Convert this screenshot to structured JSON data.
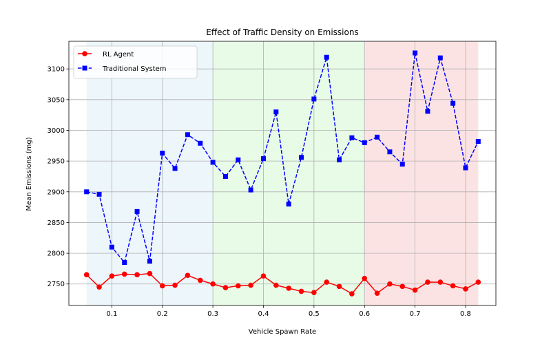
{
  "chart_data": {
    "type": "line",
    "title": "Effect of Traffic Density on Emissions",
    "xlabel": "Vehicle Spawn Rate",
    "ylabel": "Mean Emissions (mg)",
    "xlim": [
      0.015,
      0.86
    ],
    "ylim": [
      2715,
      3145
    ],
    "xticks": [
      0.1,
      0.2,
      0.3,
      0.4,
      0.5,
      0.6,
      0.7,
      0.8
    ],
    "xtick_labels": [
      "0.1",
      "0.2",
      "0.3",
      "0.4",
      "0.5",
      "0.6",
      "0.7",
      "0.8"
    ],
    "yticks": [
      2750,
      2800,
      2850,
      2900,
      2950,
      3000,
      3050,
      3100
    ],
    "ytick_labels": [
      "2750",
      "2800",
      "2850",
      "2900",
      "2950",
      "3000",
      "3050",
      "3100"
    ],
    "grid": true,
    "legend_position": "top-left",
    "regions": [
      {
        "x0": 0.05,
        "x1": 0.3,
        "color": "#add8e6",
        "opacity": 0.22
      },
      {
        "x0": 0.3,
        "x1": 0.6,
        "color": "#90ee90",
        "opacity": 0.22
      },
      {
        "x0": 0.6,
        "x1": 0.825,
        "color": "#f08080",
        "opacity": 0.22
      }
    ],
    "x": [
      0.05,
      0.075,
      0.1,
      0.125,
      0.15,
      0.175,
      0.2,
      0.225,
      0.25,
      0.275,
      0.3,
      0.325,
      0.35,
      0.375,
      0.4,
      0.425,
      0.45,
      0.475,
      0.5,
      0.525,
      0.55,
      0.575,
      0.6,
      0.625,
      0.65,
      0.675,
      0.7,
      0.725,
      0.75,
      0.775,
      0.8,
      0.825
    ],
    "series": [
      {
        "name": "RL Agent",
        "color": "#ff0000",
        "marker": "circle",
        "line_style": "solid",
        "values": [
          2765,
          2745,
          2763,
          2766,
          2765,
          2767,
          2747,
          2748,
          2764,
          2756,
          2750,
          2744,
          2747,
          2748,
          2763,
          2748,
          2743,
          2738,
          2736,
          2753,
          2746,
          2734,
          2759,
          2735,
          2750,
          2746,
          2740,
          2753,
          2753,
          2747,
          2742,
          2753
        ]
      },
      {
        "name": "Traditional System",
        "color": "#0000ff",
        "marker": "square",
        "line_style": "dashed",
        "values": [
          2900,
          2896,
          2810,
          2785,
          2868,
          2787,
          2963,
          2938,
          2993,
          2979,
          2948,
          2925,
          2952,
          2903,
          2954,
          3030,
          2880,
          2956,
          3051,
          3119,
          2952,
          2988,
          2980,
          2989,
          2965,
          2945,
          3126,
          3031,
          3118,
          3044,
          2939,
          2982
        ]
      }
    ]
  }
}
